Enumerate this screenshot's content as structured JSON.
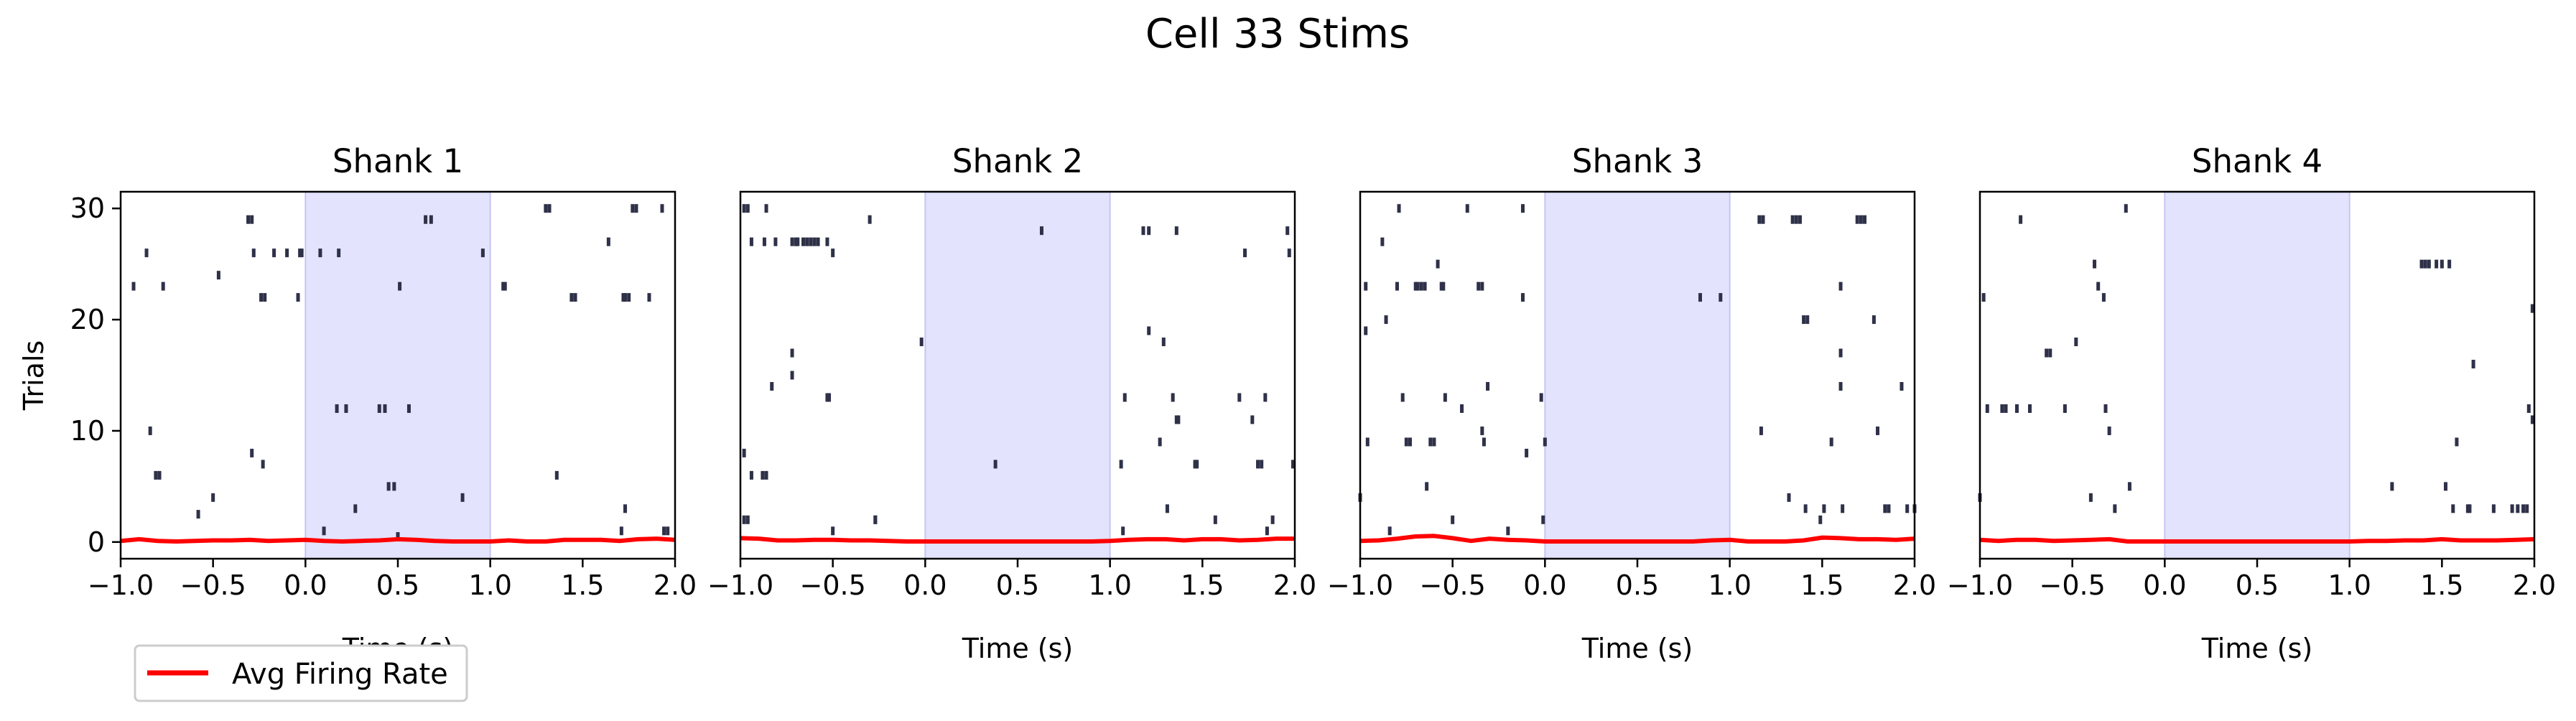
{
  "figure": {
    "title": "Cell 33 Stims"
  },
  "legend": {
    "label": "Avg Firing Rate",
    "color": "#ff0000"
  },
  "colors": {
    "spike": "#2e3148",
    "stim_fill": "#e3e3fd",
    "stim_edge": "#c5c5f5",
    "rate_line": "#ff0000"
  },
  "chart_data": [
    {
      "type": "raster",
      "title": "Shank 1",
      "xlabel": "Time (s)",
      "ylabel": "Trials",
      "xlim": [
        -1.0,
        2.0
      ],
      "ylim": [
        -1.5,
        31.5
      ],
      "xticks": [
        "−1.0",
        "−0.5",
        "0.0",
        "0.5",
        "1.0",
        "1.5",
        "2.0"
      ],
      "yticks": [
        "0",
        "10",
        "20",
        "30"
      ],
      "stim_window": [
        0.0,
        1.0
      ],
      "spikes": [
        [
          -0.93,
          23
        ],
        [
          -0.86,
          26
        ],
        [
          -0.84,
          10
        ],
        [
          -0.81,
          6
        ],
        [
          -0.79,
          6
        ],
        [
          -0.77,
          23
        ],
        [
          -0.58,
          2.5
        ],
        [
          -0.5,
          4
        ],
        [
          -0.47,
          24
        ],
        [
          -0.31,
          29
        ],
        [
          -0.29,
          29
        ],
        [
          -0.29,
          8
        ],
        [
          -0.28,
          26
        ],
        [
          -0.23,
          7
        ],
        [
          -0.24,
          22
        ],
        [
          -0.22,
          22
        ],
        [
          -0.17,
          26
        ],
        [
          -0.1,
          26
        ],
        [
          -0.03,
          26
        ],
        [
          -0.04,
          22
        ],
        [
          -0.02,
          26
        ],
        [
          0.08,
          26
        ],
        [
          0.1,
          1
        ],
        [
          0.17,
          12
        ],
        [
          0.18,
          26
        ],
        [
          0.22,
          12
        ],
        [
          0.27,
          3
        ],
        [
          0.4,
          12
        ],
        [
          0.43,
          12
        ],
        [
          0.45,
          5
        ],
        [
          0.48,
          5
        ],
        [
          0.5,
          0.5
        ],
        [
          0.51,
          23
        ],
        [
          0.56,
          12
        ],
        [
          0.65,
          29
        ],
        [
          0.68,
          29
        ],
        [
          0.85,
          4
        ],
        [
          0.96,
          26
        ],
        [
          1.07,
          23
        ],
        [
          1.08,
          23
        ],
        [
          1.3,
          30
        ],
        [
          1.32,
          30
        ],
        [
          1.36,
          6
        ],
        [
          1.44,
          22
        ],
        [
          1.46,
          22
        ],
        [
          1.64,
          27
        ],
        [
          1.71,
          1
        ],
        [
          1.72,
          22
        ],
        [
          1.73,
          22
        ],
        [
          1.73,
          3
        ],
        [
          1.75,
          22
        ],
        [
          1.77,
          30
        ],
        [
          1.79,
          30
        ],
        [
          1.86,
          22
        ],
        [
          1.93,
          30
        ],
        [
          1.94,
          1
        ],
        [
          1.96,
          1
        ]
      ],
      "rate_x": [
        -1.0,
        -0.9,
        -0.8,
        -0.7,
        -0.6,
        -0.5,
        -0.4,
        -0.3,
        -0.2,
        -0.1,
        0.0,
        0.1,
        0.2,
        0.3,
        0.4,
        0.5,
        0.6,
        0.7,
        0.8,
        0.9,
        1.0,
        1.1,
        1.2,
        1.3,
        1.4,
        1.5,
        1.6,
        1.7,
        1.8,
        1.9,
        2.0
      ],
      "rate_y": [
        0.1,
        0.25,
        0.1,
        0.05,
        0.1,
        0.15,
        0.15,
        0.2,
        0.1,
        0.15,
        0.2,
        0.1,
        0.05,
        0.1,
        0.15,
        0.25,
        0.2,
        0.1,
        0.05,
        0.05,
        0.05,
        0.15,
        0.05,
        0.05,
        0.2,
        0.2,
        0.2,
        0.1,
        0.25,
        0.3,
        0.2
      ]
    },
    {
      "type": "raster",
      "title": "Shank 2",
      "xlabel": "Time (s)",
      "ylabel": "",
      "xlim": [
        -1.0,
        2.0
      ],
      "ylim": [
        -1.5,
        31.5
      ],
      "xticks": [
        "−1.0",
        "−0.5",
        "0.0",
        "0.5",
        "1.0",
        "1.5",
        "2.0"
      ],
      "yticks": [],
      "stim_window": [
        0.0,
        1.0
      ],
      "spikes": [
        [
          -0.98,
          30
        ],
        [
          -0.96,
          30
        ],
        [
          -0.98,
          2
        ],
        [
          -0.96,
          2
        ],
        [
          -0.98,
          8
        ],
        [
          -0.94,
          6
        ],
        [
          -0.94,
          27
        ],
        [
          -0.88,
          6
        ],
        [
          -0.86,
          6
        ],
        [
          -0.86,
          30
        ],
        [
          -0.87,
          27
        ],
        [
          -0.81,
          27
        ],
        [
          -0.72,
          27
        ],
        [
          -0.7,
          27
        ],
        [
          -0.69,
          27
        ],
        [
          -0.66,
          27
        ],
        [
          -0.64,
          27
        ],
        [
          -0.62,
          27
        ],
        [
          -0.6,
          27
        ],
        [
          -0.58,
          27
        ],
        [
          -0.53,
          27
        ],
        [
          -0.5,
          26
        ],
        [
          -0.83,
          14
        ],
        [
          -0.72,
          17
        ],
        [
          -0.72,
          15
        ],
        [
          -0.53,
          13
        ],
        [
          -0.52,
          13
        ],
        [
          -0.5,
          1
        ],
        [
          -0.3,
          29
        ],
        [
          -0.27,
          2
        ],
        [
          -0.27,
          2
        ],
        [
          -0.02,
          18
        ],
        [
          0.38,
          7
        ],
        [
          0.63,
          28
        ],
        [
          1.08,
          13
        ],
        [
          1.06,
          7
        ],
        [
          1.07,
          1
        ],
        [
          1.18,
          28
        ],
        [
          1.21,
          28
        ],
        [
          1.21,
          19
        ],
        [
          1.27,
          9
        ],
        [
          1.29,
          18
        ],
        [
          1.31,
          3
        ],
        [
          1.34,
          13
        ],
        [
          1.36,
          11
        ],
        [
          1.37,
          11
        ],
        [
          1.36,
          28
        ],
        [
          1.46,
          7
        ],
        [
          1.47,
          7
        ],
        [
          1.57,
          2
        ],
        [
          1.7,
          13
        ],
        [
          1.73,
          26
        ],
        [
          1.77,
          11
        ],
        [
          1.8,
          7
        ],
        [
          1.82,
          7
        ],
        [
          1.84,
          13
        ],
        [
          1.85,
          1
        ],
        [
          1.88,
          2
        ],
        [
          1.96,
          28
        ],
        [
          1.97,
          26
        ],
        [
          1.99,
          7
        ]
      ],
      "rate_x": [
        -1.0,
        -0.9,
        -0.8,
        -0.7,
        -0.6,
        -0.5,
        -0.4,
        -0.3,
        -0.2,
        -0.1,
        0.0,
        0.1,
        0.2,
        0.3,
        0.4,
        0.5,
        0.6,
        0.7,
        0.8,
        0.9,
        1.0,
        1.1,
        1.2,
        1.3,
        1.4,
        1.5,
        1.6,
        1.7,
        1.8,
        1.9,
        2.0
      ],
      "rate_y": [
        0.35,
        0.3,
        0.15,
        0.15,
        0.2,
        0.2,
        0.15,
        0.15,
        0.1,
        0.05,
        0.05,
        0.05,
        0.05,
        0.05,
        0.05,
        0.05,
        0.05,
        0.05,
        0.05,
        0.05,
        0.1,
        0.2,
        0.25,
        0.25,
        0.15,
        0.25,
        0.25,
        0.15,
        0.2,
        0.3,
        0.3
      ]
    },
    {
      "type": "raster",
      "title": "Shank 3",
      "xlabel": "Time (s)",
      "ylabel": "",
      "xlim": [
        -1.0,
        2.0
      ],
      "ylim": [
        -1.5,
        31.5
      ],
      "xticks": [
        "−1.0",
        "−0.5",
        "0.0",
        "0.5",
        "1.0",
        "1.5",
        "2.0"
      ],
      "yticks": [],
      "stim_window": [
        0.0,
        1.0
      ],
      "spikes": [
        [
          -1.0,
          4
        ],
        [
          -0.97,
          23
        ],
        [
          -0.97,
          19
        ],
        [
          -0.96,
          9
        ],
        [
          -0.88,
          27
        ],
        [
          -0.86,
          20
        ],
        [
          -0.84,
          1
        ],
        [
          -0.8,
          23
        ],
        [
          -0.79,
          30
        ],
        [
          -0.77,
          13
        ],
        [
          -0.75,
          9
        ],
        [
          -0.73,
          9
        ],
        [
          -0.7,
          23
        ],
        [
          -0.69,
          23
        ],
        [
          -0.67,
          23
        ],
        [
          -0.65,
          23
        ],
        [
          -0.64,
          5
        ],
        [
          -0.62,
          9
        ],
        [
          -0.6,
          9
        ],
        [
          -0.58,
          25
        ],
        [
          -0.56,
          23
        ],
        [
          -0.55,
          23
        ],
        [
          -0.54,
          13
        ],
        [
          -0.5,
          2
        ],
        [
          -0.45,
          12
        ],
        [
          -0.42,
          30
        ],
        [
          -0.36,
          23
        ],
        [
          -0.34,
          23
        ],
        [
          -0.34,
          10
        ],
        [
          -0.33,
          9
        ],
        [
          -0.31,
          14
        ],
        [
          -0.2,
          1
        ],
        [
          -0.12,
          30
        ],
        [
          -0.12,
          22
        ],
        [
          -0.1,
          8
        ],
        [
          -0.02,
          13
        ],
        [
          0.0,
          9
        ],
        [
          -0.01,
          2
        ],
        [
          0.84,
          22
        ],
        [
          0.95,
          22
        ],
        [
          1.16,
          29
        ],
        [
          1.18,
          29
        ],
        [
          1.17,
          10
        ],
        [
          1.34,
          29
        ],
        [
          1.36,
          29
        ],
        [
          1.38,
          29
        ],
        [
          1.4,
          20
        ],
        [
          1.42,
          20
        ],
        [
          1.32,
          4
        ],
        [
          1.41,
          3
        ],
        [
          1.49,
          2
        ],
        [
          1.51,
          3
        ],
        [
          1.55,
          9
        ],
        [
          1.6,
          23
        ],
        [
          1.6,
          17
        ],
        [
          1.6,
          14
        ],
        [
          1.61,
          3
        ],
        [
          1.69,
          29
        ],
        [
          1.71,
          29
        ],
        [
          1.73,
          29
        ],
        [
          1.78,
          20
        ],
        [
          1.8,
          10
        ],
        [
          1.84,
          3
        ],
        [
          1.86,
          3
        ],
        [
          1.93,
          14
        ],
        [
          1.96,
          3
        ],
        [
          2.0,
          3
        ]
      ],
      "rate_x": [
        -1.0,
        -0.9,
        -0.8,
        -0.7,
        -0.6,
        -0.5,
        -0.4,
        -0.3,
        -0.2,
        -0.1,
        0.0,
        0.1,
        0.2,
        0.3,
        0.4,
        0.5,
        0.6,
        0.7,
        0.8,
        0.9,
        1.0,
        1.1,
        1.2,
        1.3,
        1.4,
        1.5,
        1.6,
        1.7,
        1.8,
        1.9,
        2.0
      ],
      "rate_y": [
        0.1,
        0.15,
        0.3,
        0.5,
        0.55,
        0.35,
        0.1,
        0.3,
        0.2,
        0.15,
        0.05,
        0.05,
        0.05,
        0.05,
        0.05,
        0.05,
        0.05,
        0.05,
        0.05,
        0.15,
        0.2,
        0.05,
        0.05,
        0.05,
        0.15,
        0.4,
        0.35,
        0.25,
        0.25,
        0.2,
        0.3
      ]
    },
    {
      "type": "raster",
      "title": "Shank 4",
      "xlabel": "Time (s)",
      "ylabel": "",
      "xlim": [
        -1.0,
        2.0
      ],
      "ylim": [
        -1.5,
        31.5
      ],
      "xticks": [
        "−1.0",
        "−0.5",
        "0.0",
        "0.5",
        "1.0",
        "1.5",
        "2.0"
      ],
      "yticks": [],
      "stim_window": [
        0.0,
        1.0
      ],
      "spikes": [
        [
          -0.98,
          22
        ],
        [
          -1.0,
          4
        ],
        [
          -0.96,
          12
        ],
        [
          -0.88,
          12
        ],
        [
          -0.86,
          12
        ],
        [
          -0.8,
          12
        ],
        [
          -0.78,
          29
        ],
        [
          -0.73,
          12
        ],
        [
          -0.64,
          17
        ],
        [
          -0.62,
          17
        ],
        [
          -0.54,
          12
        ],
        [
          -0.48,
          18
        ],
        [
          -0.4,
          4
        ],
        [
          -0.38,
          25
        ],
        [
          -0.36,
          23
        ],
        [
          -0.33,
          22
        ],
        [
          -0.32,
          12
        ],
        [
          -0.3,
          10
        ],
        [
          -0.27,
          3
        ],
        [
          -0.21,
          30
        ],
        [
          -0.19,
          5
        ],
        [
          1.23,
          5
        ],
        [
          1.39,
          25
        ],
        [
          1.41,
          25
        ],
        [
          1.43,
          25
        ],
        [
          1.47,
          25
        ],
        [
          1.5,
          25
        ],
        [
          1.54,
          25
        ],
        [
          1.52,
          5
        ],
        [
          1.56,
          3
        ],
        [
          1.58,
          9
        ],
        [
          1.64,
          3
        ],
        [
          1.65,
          3
        ],
        [
          1.67,
          16
        ],
        [
          1.78,
          3
        ],
        [
          1.88,
          3
        ],
        [
          1.91,
          3
        ],
        [
          1.94,
          3
        ],
        [
          1.96,
          3
        ],
        [
          1.97,
          12
        ],
        [
          1.99,
          11
        ],
        [
          1.99,
          21
        ],
        [
          1.99,
          21
        ]
      ],
      "rate_x": [
        -1.0,
        -0.9,
        -0.8,
        -0.7,
        -0.6,
        -0.5,
        -0.4,
        -0.3,
        -0.2,
        -0.1,
        0.0,
        0.1,
        0.2,
        0.3,
        0.4,
        0.5,
        0.6,
        0.7,
        0.8,
        0.9,
        1.0,
        1.1,
        1.2,
        1.3,
        1.4,
        1.5,
        1.6,
        1.7,
        1.8,
        1.9,
        2.0
      ],
      "rate_y": [
        0.2,
        0.1,
        0.2,
        0.2,
        0.1,
        0.15,
        0.2,
        0.25,
        0.05,
        0.05,
        0.05,
        0.05,
        0.05,
        0.05,
        0.05,
        0.05,
        0.05,
        0.05,
        0.05,
        0.05,
        0.05,
        0.1,
        0.1,
        0.15,
        0.15,
        0.25,
        0.15,
        0.15,
        0.15,
        0.2,
        0.25
      ]
    }
  ]
}
